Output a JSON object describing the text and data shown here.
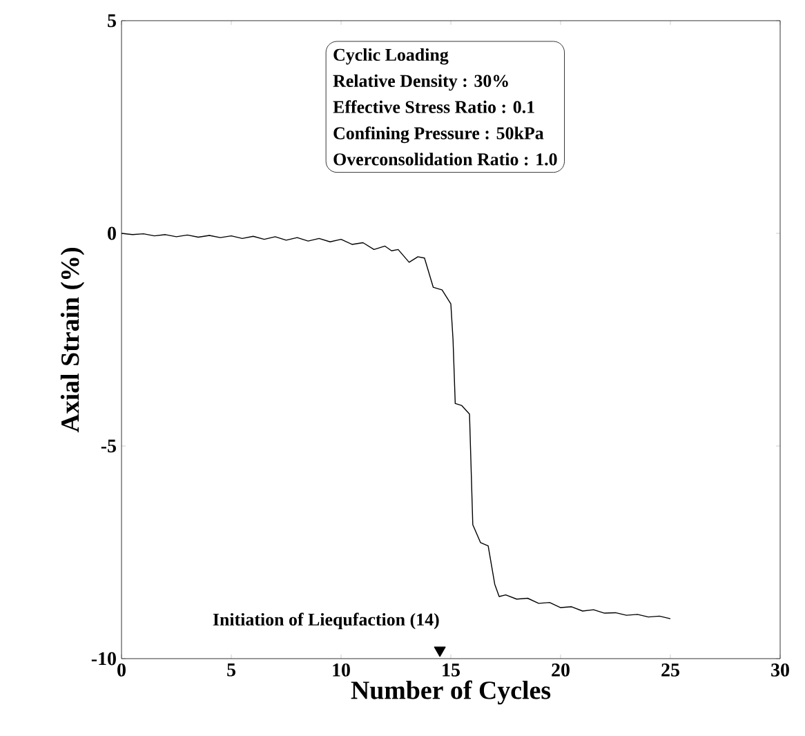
{
  "chart_data": {
    "type": "line",
    "xlabel": "Number of Cycles",
    "ylabel": "Axial Strain (%)",
    "x": [
      0,
      0.5,
      1,
      1.5,
      2,
      2.5,
      3,
      3.5,
      4,
      4.5,
      5,
      5.5,
      6,
      6.5,
      7,
      7.5,
      8,
      8.5,
      9,
      9.5,
      10,
      10.5,
      11,
      11.5,
      12,
      12.3,
      12.6,
      13.1,
      13.5,
      13.8,
      14.2,
      14.6,
      15.0,
      15.1,
      15.2,
      15.5,
      15.85,
      16.0,
      16.35,
      16.7,
      17.0,
      17.2,
      17.5,
      18,
      18.5,
      19,
      19.5,
      20,
      20.5,
      21,
      21.5,
      22,
      22.5,
      23,
      23.5,
      24,
      24.5,
      25
    ],
    "series": [
      {
        "color": "#000000",
        "values": [
          0,
          -0.03,
          -0.01,
          -0.06,
          -0.03,
          -0.08,
          -0.04,
          -0.09,
          -0.05,
          -0.1,
          -0.06,
          -0.12,
          -0.07,
          -0.14,
          -0.08,
          -0.16,
          -0.1,
          -0.18,
          -0.12,
          -0.2,
          -0.14,
          -0.26,
          -0.22,
          -0.38,
          -0.3,
          -0.41,
          -0.38,
          -0.68,
          -0.55,
          -0.58,
          -1.27,
          -1.33,
          -1.66,
          -2.5,
          -4.0,
          -4.05,
          -4.25,
          -6.85,
          -7.27,
          -7.35,
          -8.25,
          -8.54,
          -8.5,
          -8.6,
          -8.58,
          -8.7,
          -8.68,
          -8.8,
          -8.78,
          -8.88,
          -8.85,
          -8.93,
          -8.92,
          -8.98,
          -8.96,
          -9.02,
          -9.0,
          -9.06
        ]
      },
      {
        "type": "scatter",
        "name": "Initiation of Liequfaction (14)",
        "color": "#000000",
        "marker": "triangle",
        "x": [
          14.5
        ],
        "values": [
          -9.8
        ]
      }
    ],
    "xlim": [
      0,
      30
    ],
    "ylim": [
      -10,
      5
    ],
    "xticks": [
      0,
      5,
      10,
      15,
      20,
      25,
      30
    ],
    "yticks": [
      -10,
      -5,
      0,
      5
    ],
    "grid": false,
    "marker": "none",
    "line_style": "solid",
    "annotations": [
      "Cyclic Loading",
      "Relative Density : 30%",
      "Effective Stress Ratio : 0.1",
      "Confining Pressure : 50kPa",
      "Overconsolidation Ratio : 1.0"
    ]
  }
}
